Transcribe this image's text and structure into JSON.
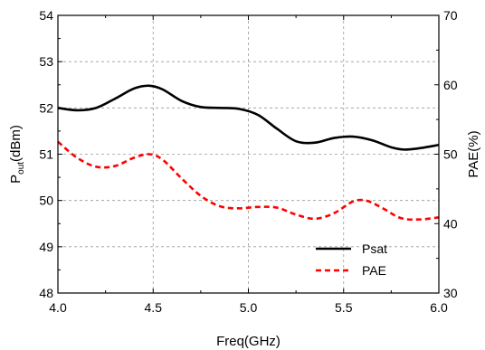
{
  "chart_data": {
    "type": "line",
    "title": "",
    "xlabel": "Freq(GHz)",
    "ylabel_left": {
      "main": "P",
      "sub": "out",
      "tail": "(dBm)"
    },
    "ylabel_right": "PAE(%)",
    "xlim": [
      4.0,
      6.0
    ],
    "ylim_left": [
      48,
      54
    ],
    "ylim_right": [
      30,
      70
    ],
    "x_ticks": [
      "4.0",
      "4.5",
      "5.0",
      "5.5",
      "6.0"
    ],
    "y_left_ticks": [
      "48",
      "49",
      "50",
      "51",
      "52",
      "53",
      "54"
    ],
    "y_right_ticks": [
      "30",
      "40",
      "50",
      "60",
      "70"
    ],
    "grid": true,
    "legend_position": "bottom-right",
    "series": [
      {
        "name": "Psat",
        "axis": "left",
        "color": "#000000",
        "style": "solid",
        "x": [
          4.0,
          4.1,
          4.2,
          4.3,
          4.4,
          4.48,
          4.55,
          4.65,
          4.75,
          4.85,
          4.95,
          5.05,
          5.15,
          5.25,
          5.35,
          5.45,
          5.55,
          5.65,
          5.75,
          5.82,
          5.9,
          6.0
        ],
        "values": [
          52.0,
          51.95,
          52.0,
          52.2,
          52.42,
          52.48,
          52.4,
          52.15,
          52.02,
          52.0,
          51.98,
          51.85,
          51.55,
          51.28,
          51.25,
          51.35,
          51.38,
          51.3,
          51.15,
          51.1,
          51.13,
          51.2
        ]
      },
      {
        "name": "PAE",
        "axis": "right",
        "color": "#ff0000",
        "style": "dashed",
        "x": [
          4.0,
          4.1,
          4.2,
          4.3,
          4.4,
          4.48,
          4.55,
          4.65,
          4.75,
          4.85,
          4.95,
          5.05,
          5.15,
          5.25,
          5.35,
          5.45,
          5.55,
          5.62,
          5.7,
          5.8,
          5.9,
          6.0
        ],
        "values": [
          51.8,
          49.5,
          48.2,
          48.3,
          49.5,
          50.0,
          49.2,
          46.5,
          44.0,
          42.5,
          42.2,
          42.4,
          42.3,
          41.3,
          40.7,
          41.5,
          43.2,
          43.3,
          42.3,
          40.8,
          40.6,
          40.9
        ]
      }
    ]
  }
}
